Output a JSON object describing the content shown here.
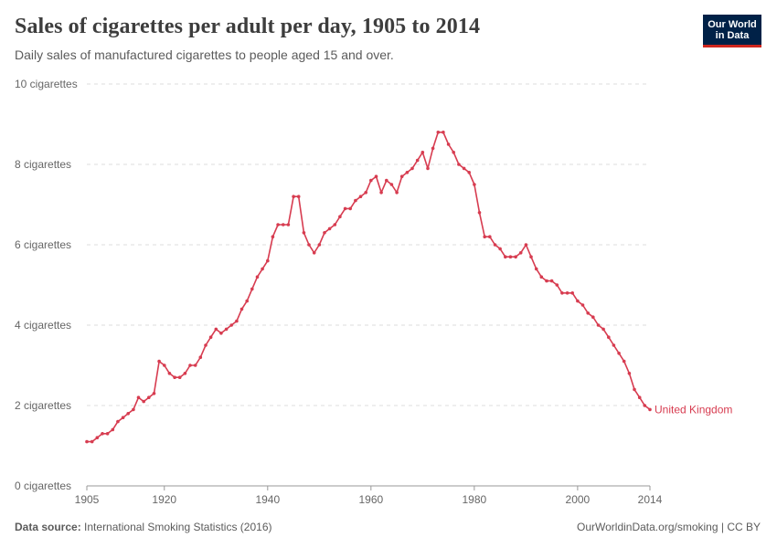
{
  "header": {
    "title": "Sales of cigarettes per adult per day, 1905 to 2014",
    "subtitle": "Daily sales of manufactured cigarettes to people aged 15 and over."
  },
  "logo": {
    "line1": "Our World",
    "line2": "in Data"
  },
  "footer": {
    "source_label": "Data source:",
    "source_text": "International Smoking Statistics (2016)",
    "link_text": "OurWorldinData.org/smoking",
    "license": "CC BY"
  },
  "colors": {
    "series": "#d73c50",
    "grid": "#dddddd",
    "axis_text": "#666666"
  },
  "chart_data": {
    "type": "line",
    "title": "Sales of cigarettes per adult per day, 1905 to 2014",
    "xlabel": "",
    "ylabel": "",
    "xlim": [
      1905,
      2014
    ],
    "ylim": [
      0,
      10
    ],
    "x_ticks": [
      "1905",
      "1920",
      "1940",
      "1960",
      "1980",
      "2000",
      "2014"
    ],
    "y_ticks": [
      "0 cigarettes",
      "2 cigarettes",
      "4 cigarettes",
      "6 cigarettes",
      "8 cigarettes",
      "10 cigarettes"
    ],
    "grid": true,
    "legend": "end-of-line label",
    "series": [
      {
        "name": "United Kingdom",
        "color": "#d73c50",
        "x": [
          1905,
          1906,
          1907,
          1908,
          1909,
          1910,
          1911,
          1912,
          1913,
          1914,
          1915,
          1916,
          1917,
          1918,
          1919,
          1920,
          1921,
          1922,
          1923,
          1924,
          1925,
          1926,
          1927,
          1928,
          1929,
          1930,
          1931,
          1932,
          1933,
          1934,
          1935,
          1936,
          1937,
          1938,
          1939,
          1940,
          1941,
          1942,
          1943,
          1944,
          1945,
          1946,
          1947,
          1948,
          1949,
          1950,
          1951,
          1952,
          1953,
          1954,
          1955,
          1956,
          1957,
          1958,
          1959,
          1960,
          1961,
          1962,
          1963,
          1964,
          1965,
          1966,
          1967,
          1968,
          1969,
          1970,
          1971,
          1972,
          1973,
          1974,
          1975,
          1976,
          1977,
          1978,
          1979,
          1980,
          1981,
          1982,
          1983,
          1984,
          1985,
          1986,
          1987,
          1988,
          1989,
          1990,
          1991,
          1992,
          1993,
          1994,
          1995,
          1996,
          1997,
          1998,
          1999,
          2000,
          2001,
          2002,
          2003,
          2004,
          2005,
          2006,
          2007,
          2008,
          2009,
          2010,
          2011,
          2012,
          2013,
          2014
        ],
        "values": [
          1.1,
          1.1,
          1.2,
          1.3,
          1.3,
          1.4,
          1.6,
          1.7,
          1.8,
          1.9,
          2.2,
          2.1,
          2.2,
          2.3,
          3.1,
          3.0,
          2.8,
          2.7,
          2.7,
          2.8,
          3.0,
          3.0,
          3.2,
          3.5,
          3.7,
          3.9,
          3.8,
          3.9,
          4.0,
          4.1,
          4.4,
          4.6,
          4.9,
          5.2,
          5.4,
          5.6,
          6.2,
          6.5,
          6.5,
          6.5,
          7.2,
          7.2,
          6.3,
          6.0,
          5.8,
          6.0,
          6.3,
          6.4,
          6.5,
          6.7,
          6.9,
          6.9,
          7.1,
          7.2,
          7.3,
          7.6,
          7.7,
          7.3,
          7.6,
          7.5,
          7.3,
          7.7,
          7.8,
          7.9,
          8.1,
          8.3,
          7.9,
          8.4,
          8.8,
          8.8,
          8.5,
          8.3,
          8.0,
          7.9,
          7.8,
          7.5,
          6.8,
          6.2,
          6.2,
          6.0,
          5.9,
          5.7,
          5.7,
          5.7,
          5.8,
          6.0,
          5.7,
          5.4,
          5.2,
          5.1,
          5.1,
          5.0,
          4.8,
          4.8,
          4.8,
          4.6,
          4.5,
          4.3,
          4.2,
          4.0,
          3.9,
          3.7,
          3.5,
          3.3,
          3.1,
          2.8,
          2.4,
          2.2,
          2.0,
          1.9
        ]
      }
    ]
  }
}
